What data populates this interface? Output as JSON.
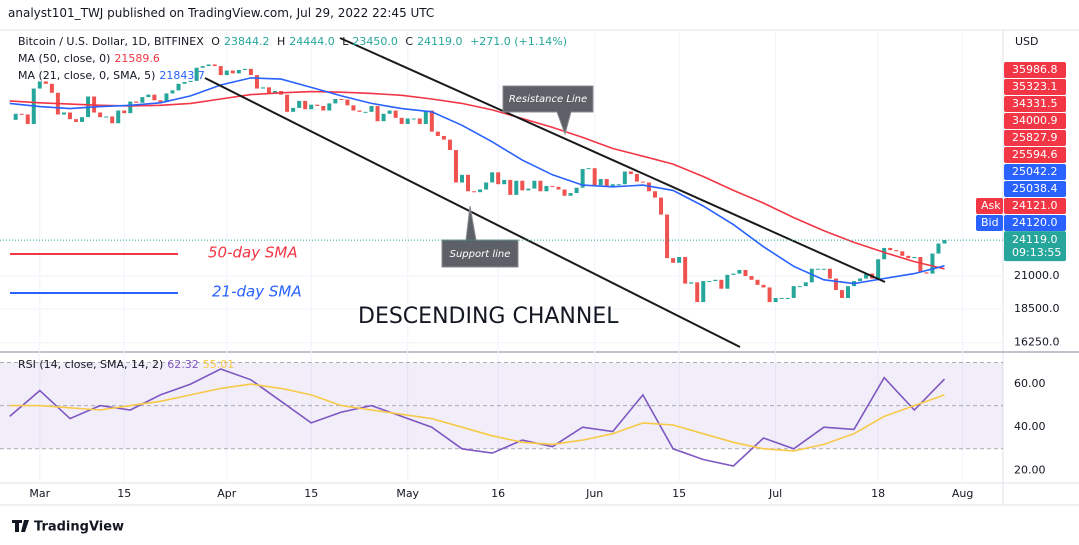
{
  "header": {
    "publisher": "analyst101_TWJ published on TradingView.com, Jul 29, 2022 22:45 UTC"
  },
  "chart_data": {
    "type": "candlestick",
    "symbol": "Bitcoin / U.S. Dollar, 1D, BITFINEX",
    "ohlc_legend": [
      {
        "label": "O",
        "value": "23844.2"
      },
      {
        "label": "H",
        "value": "24444.0"
      },
      {
        "label": "L",
        "value": "23450.0"
      },
      {
        "label": "C",
        "value": "24119.0"
      }
    ],
    "change": "+271.0 (+1.14%)",
    "x": [
      -5,
      -4,
      -3,
      -2,
      -1,
      0,
      1,
      2,
      3,
      4,
      5,
      6,
      7,
      8,
      9,
      10,
      11,
      12,
      13,
      14,
      15,
      16,
      17,
      18,
      19,
      20,
      21,
      22,
      23,
      24,
      25,
      26,
      27,
      28,
      29,
      30,
      31,
      32,
      33,
      34,
      35,
      36,
      37,
      38,
      39,
      40,
      41,
      42,
      43,
      44,
      45,
      46,
      47,
      48,
      49,
      50,
      51,
      52,
      53,
      54,
      55,
      56,
      57,
      58,
      59,
      60,
      61,
      62,
      63,
      64,
      65,
      66,
      67,
      68,
      69,
      70,
      71,
      72,
      73,
      74,
      75,
      76,
      77,
      78,
      79,
      80,
      81,
      82,
      83,
      84,
      85,
      86,
      87,
      88,
      89,
      90,
      91,
      92,
      93,
      94,
      95,
      96,
      97,
      98,
      99,
      100,
      101,
      102,
      103,
      104,
      105,
      106,
      107,
      108,
      109,
      110,
      111,
      112,
      113,
      114,
      115,
      116,
      117,
      118,
      119,
      120,
      121,
      122,
      123,
      124,
      125,
      126,
      127,
      128,
      129,
      130,
      131,
      132,
      133,
      134,
      135,
      136,
      137,
      138,
      139,
      140,
      141,
      142,
      143,
      144,
      145,
      146,
      147,
      148,
      149,
      150
    ],
    "close": [
      38300,
      39200,
      39100,
      37700,
      43200,
      44400,
      44000,
      42500,
      39100,
      39400,
      38400,
      38000,
      38700,
      41900,
      39400,
      38700,
      38800,
      37800,
      39700,
      39300,
      41100,
      40900,
      41800,
      42200,
      41300,
      41000,
      42400,
      42900,
      44000,
      44300,
      44500,
      46800,
      47100,
      47400,
      47100,
      45500,
      46300,
      45800,
      46400,
      46600,
      45500,
      43200,
      43400,
      42300,
      42800,
      42200,
      39500,
      40100,
      41200,
      39900,
      40600,
      40400,
      39700,
      40800,
      41500,
      41400,
      40500,
      39700,
      39500,
      39500,
      40400,
      38100,
      39200,
      39700,
      38600,
      37700,
      38500,
      38500,
      37700,
      39700,
      36600,
      36000,
      35500,
      34100,
      30100,
      31000,
      29100,
      29000,
      29300,
      30100,
      31300,
      29900,
      30400,
      28700,
      30300,
      29200,
      29400,
      30300,
      29100,
      29700,
      29600,
      29300,
      28600,
      28900,
      29500,
      31700,
      31800,
      29800,
      30500,
      29700,
      29900,
      29900,
      31400,
      31100,
      30200,
      30100,
      29100,
      28400,
      26600,
      22500,
      22100,
      22600,
      20400,
      20500,
      19000,
      20600,
      20600,
      20700,
      20000,
      21100,
      21200,
      21500,
      21000,
      20700,
      20300,
      20100,
      19000,
      19300,
      19300,
      19300,
      20200,
      20200,
      20500,
      21600,
      21600,
      21600,
      20800,
      19900,
      19300,
      20200,
      20600,
      20800,
      21200,
      20800,
      22400,
      23400,
      23200,
      23100,
      22700,
      22500,
      22600,
      21300,
      21200,
      22900,
      23800,
      24119
    ],
    "up_color": "#26a69a",
    "down_color": "#ef5350",
    "series": [
      {
        "name": "MA (50, close, 0)",
        "last": "21589.6",
        "color": "#f23645",
        "x": [
          -5,
          0,
          5,
          10,
          15,
          20,
          25,
          30,
          35,
          40,
          45,
          50,
          55,
          60,
          65,
          70,
          75,
          80,
          85,
          90,
          95,
          100,
          105,
          110,
          115,
          120,
          125,
          130,
          135,
          140,
          145,
          150
        ],
        "values": [
          41200,
          40900,
          40700,
          40500,
          40400,
          40500,
          40800,
          41500,
          42200,
          42500,
          42700,
          42600,
          42400,
          42100,
          41500,
          40800,
          39800,
          38500,
          37200,
          35800,
          34300,
          33300,
          32300,
          30800,
          29200,
          27800,
          26300,
          25000,
          23900,
          23000,
          22200,
          21590
        ]
      },
      {
        "name": "MA (21, close, 0, SMA, 5)",
        "last": "21843.7",
        "color": "#2962ff",
        "x": [
          -5,
          0,
          5,
          10,
          15,
          20,
          25,
          30,
          35,
          40,
          45,
          50,
          55,
          60,
          65,
          70,
          75,
          80,
          85,
          90,
          95,
          100,
          105,
          110,
          115,
          120,
          125,
          130,
          135,
          140,
          145,
          150
        ],
        "values": [
          40800,
          40300,
          40000,
          40300,
          40500,
          40900,
          42000,
          43800,
          45000,
          44800,
          43400,
          42000,
          40800,
          40000,
          39500,
          37500,
          35200,
          32800,
          31000,
          29800,
          29600,
          29800,
          29200,
          27500,
          25600,
          23500,
          21800,
          20700,
          20400,
          20800,
          21200,
          21843
        ]
      }
    ],
    "log_scale": true,
    "grid": true,
    "ylim": [
      15680,
      53700
    ],
    "yticks": [
      {
        "value": 16250,
        "label": "16250.0"
      },
      {
        "value": 18500,
        "label": "18500.0"
      },
      {
        "value": 21000,
        "label": "21000.0"
      }
    ],
    "xlim": [
      -6.6,
      159.7
    ],
    "xticks": [
      {
        "value": 0,
        "label": "Mar"
      },
      {
        "value": 14,
        "label": "15"
      },
      {
        "value": 31,
        "label": "Apr"
      },
      {
        "value": 45,
        "label": "15"
      },
      {
        "value": 61,
        "label": "May"
      },
      {
        "value": 76,
        "label": "16"
      },
      {
        "value": 92,
        "label": "Jun"
      },
      {
        "value": 106,
        "label": "15"
      },
      {
        "value": 122,
        "label": "Jul"
      },
      {
        "value": 139,
        "label": "18"
      },
      {
        "value": 153,
        "label": "Aug"
      }
    ],
    "currency": "USD",
    "price_labels": [
      {
        "text": "35986.8",
        "color": "#f23645"
      },
      {
        "text": "35323.1",
        "color": "#f23645"
      },
      {
        "text": "34331.5",
        "color": "#f23645"
      },
      {
        "text": "34000.9",
        "color": "#f23645"
      },
      {
        "text": "25827.9",
        "color": "#f23645"
      },
      {
        "text": "25594.6",
        "color": "#f23645"
      },
      {
        "text": "25042.2",
        "color": "#2962ff"
      },
      {
        "text": "25038.4",
        "color": "#2962ff"
      },
      {
        "tag": "Ask",
        "text": "24121.0",
        "color": "#f23645"
      },
      {
        "tag": "Bid",
        "text": "24120.0",
        "color": "#2962ff"
      }
    ],
    "countdown": "09:13:55",
    "annotations": [
      "Resistance Line",
      "Support line",
      "50-day SMA",
      "21-day SMA",
      "DESCENDING CHANNEL"
    ],
    "rsi": {
      "name": "RSI (14, close, SMA, 14, 2)",
      "ylim": [
        15.5,
        73.5
      ],
      "yticks": [
        {
          "value": 20,
          "label": "20.00"
        },
        {
          "value": 40,
          "label": "40.00"
        },
        {
          "value": 60,
          "label": "60.00"
        }
      ],
      "bands": [
        30,
        50,
        70
      ],
      "series": [
        {
          "last": "62.32",
          "color": "#7e57c2",
          "x": [
            -5,
            0,
            5,
            10,
            15,
            20,
            25,
            30,
            35,
            40,
            45,
            50,
            55,
            60,
            65,
            70,
            75,
            80,
            85,
            90,
            95,
            100,
            105,
            110,
            115,
            120,
            125,
            130,
            135,
            140,
            145,
            150
          ],
          "values": [
            45,
            57,
            44,
            50,
            48,
            55,
            60,
            67,
            62,
            52,
            42,
            47,
            50,
            45,
            40,
            30,
            28,
            34,
            31,
            40,
            38,
            55,
            30,
            25,
            22,
            35,
            30,
            40,
            39,
            63,
            48,
            62.32
          ]
        },
        {
          "last": "55.01",
          "color": "#f7c948",
          "x": [
            -5,
            0,
            5,
            10,
            15,
            20,
            25,
            30,
            35,
            40,
            45,
            50,
            55,
            60,
            65,
            70,
            75,
            80,
            85,
            90,
            95,
            100,
            105,
            110,
            115,
            120,
            125,
            130,
            135,
            140,
            145,
            150
          ],
          "values": [
            50,
            50,
            49,
            48,
            50,
            52,
            55,
            58,
            60,
            58,
            55,
            50,
            48,
            46,
            44,
            40,
            36,
            33,
            32,
            34,
            37,
            42,
            41,
            37,
            33,
            30,
            29,
            32,
            37,
            45,
            50,
            55
          ]
        }
      ]
    }
  },
  "footer": {
    "brand": "TradingView"
  }
}
